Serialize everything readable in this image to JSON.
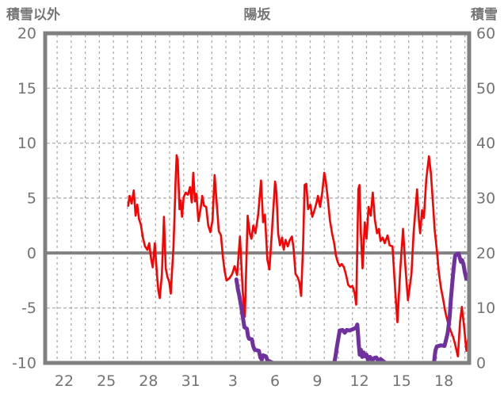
{
  "title": "陽坂",
  "left_axis_title": "積雪以外",
  "right_axis_title": "積雪",
  "colors": {
    "temperature_line": "#fe0000",
    "snow_line": "#7030a0",
    "grid": "#a6a6a6",
    "frame": "#808080",
    "zero_line": "#808080",
    "text": "#737373",
    "background": "#ffffff"
  },
  "chart_data": {
    "type": "line",
    "title": "陽坂",
    "legend": "none",
    "x_axis": {
      "range": [
        21.15,
        51.3
      ],
      "gridline_days": [
        22,
        23,
        24,
        25,
        26,
        27,
        28,
        29,
        30,
        31,
        32,
        33,
        34,
        35,
        36,
        37,
        38,
        39,
        40,
        41,
        42,
        43,
        44,
        45,
        46,
        47,
        48,
        49,
        50,
        51
      ],
      "tick_labels": [
        {
          "t": 22.5,
          "label": "22"
        },
        {
          "t": 25.5,
          "label": "25"
        },
        {
          "t": 28.5,
          "label": "28"
        },
        {
          "t": 31.5,
          "label": "31"
        },
        {
          "t": 34.5,
          "label": "3"
        },
        {
          "t": 37.5,
          "label": "6"
        },
        {
          "t": 40.5,
          "label": "9"
        },
        {
          "t": 43.5,
          "label": "12"
        },
        {
          "t": 46.5,
          "label": "15"
        },
        {
          "t": 49.5,
          "label": "18"
        }
      ]
    },
    "y_left": {
      "label": "積雪以外",
      "range": [
        -10,
        20
      ],
      "ticks": [
        20,
        15,
        10,
        5,
        0,
        -5,
        -10
      ],
      "dashed_gridlines": [
        15,
        10,
        5,
        -5
      ],
      "zero_line": 0
    },
    "y_right": {
      "label": "積雪",
      "range": [
        0,
        60
      ],
      "ticks": [
        60,
        50,
        40,
        30,
        20,
        10,
        0
      ]
    },
    "series": [
      {
        "name": "積雪以外",
        "axis": "left",
        "color": "#fe0000",
        "width": 2.6,
        "segments": [
          [
            [
              27.05,
              4.3
            ],
            [
              27.15,
              5.2
            ],
            [
              27.3,
              4.5
            ],
            [
              27.45,
              5.7
            ],
            [
              27.58,
              3.4
            ],
            [
              27.7,
              4.4
            ],
            [
              27.82,
              3.1
            ],
            [
              27.95,
              2.6
            ],
            [
              28.1,
              1.4
            ],
            [
              28.25,
              0.6
            ],
            [
              28.42,
              0.3
            ],
            [
              28.55,
              0.9
            ],
            [
              28.68,
              -0.5
            ],
            [
              28.8,
              -1.3
            ],
            [
              28.95,
              0.9
            ],
            [
              29.1,
              -2.0
            ],
            [
              29.2,
              -3.4
            ],
            [
              29.3,
              -4.1
            ],
            [
              29.45,
              -1.9
            ],
            [
              29.6,
              3.3
            ],
            [
              29.72,
              -1.4
            ],
            [
              29.85,
              -2.2
            ],
            [
              29.97,
              -2.6
            ],
            [
              30.08,
              -3.7
            ],
            [
              30.18,
              -1.5
            ],
            [
              30.27,
              0.4
            ],
            [
              30.35,
              3.5
            ],
            [
              30.42,
              6.4
            ],
            [
              30.5,
              8.9
            ],
            [
              30.58,
              8.4
            ],
            [
              30.7,
              4.0
            ],
            [
              30.78,
              4.8
            ],
            [
              30.88,
              3.3
            ],
            [
              31.0,
              5.1
            ],
            [
              31.15,
              5.5
            ],
            [
              31.3,
              5.3
            ],
            [
              31.45,
              6.0
            ],
            [
              31.57,
              4.6
            ],
            [
              31.68,
              7.3
            ],
            [
              31.8,
              4.7
            ],
            [
              31.9,
              5.4
            ],
            [
              32.05,
              2.9
            ],
            [
              32.2,
              4.0
            ],
            [
              32.32,
              5.2
            ],
            [
              32.45,
              4.3
            ],
            [
              32.6,
              4.2
            ],
            [
              32.75,
              2.5
            ],
            [
              32.9,
              1.9
            ],
            [
              33.05,
              3.0
            ],
            [
              33.2,
              7.1
            ],
            [
              33.35,
              4.5
            ],
            [
              33.5,
              2.0
            ],
            [
              33.65,
              1.6
            ],
            [
              33.8,
              -0.5
            ],
            [
              33.92,
              -1.7
            ],
            [
              34.05,
              -2.5
            ],
            [
              34.25,
              -2.3
            ],
            [
              34.45,
              -1.9
            ],
            [
              34.62,
              -1.2
            ],
            [
              34.8,
              -2.0
            ],
            [
              35.0,
              1.5
            ],
            [
              35.2,
              -3.5
            ],
            [
              35.35,
              -5.8
            ],
            [
              35.55,
              3.4
            ],
            [
              35.7,
              1.8
            ],
            [
              35.82,
              1.3
            ],
            [
              35.95,
              2.5
            ],
            [
              36.1,
              1.8
            ],
            [
              36.3,
              3.5
            ],
            [
              36.5,
              6.6
            ],
            [
              36.65,
              2.8
            ],
            [
              36.78,
              3.5
            ],
            [
              36.95,
              -0.6
            ],
            [
              37.1,
              -1.5
            ],
            [
              37.3,
              2.5
            ],
            [
              37.5,
              6.5
            ],
            [
              37.6,
              5.5
            ],
            [
              37.72,
              1.8
            ],
            [
              37.85,
              0.7
            ],
            [
              38.0,
              1.4
            ],
            [
              38.12,
              0.3
            ],
            [
              38.25,
              1.2
            ],
            [
              38.4,
              0.6
            ],
            [
              38.55,
              1.2
            ],
            [
              38.7,
              1.5
            ],
            [
              38.82,
              0.4
            ],
            [
              38.95,
              -1.9
            ],
            [
              39.1,
              -2.2
            ],
            [
              39.22,
              -2.6
            ],
            [
              39.35,
              -3.9
            ],
            [
              39.5,
              1.0
            ],
            [
              39.6,
              6.2
            ],
            [
              39.72,
              6.3
            ],
            [
              39.85,
              4.0
            ],
            [
              40.0,
              4.4
            ],
            [
              40.15,
              3.3
            ],
            [
              40.3,
              3.9
            ],
            [
              40.45,
              4.6
            ],
            [
              40.55,
              5.2
            ],
            [
              40.7,
              4.2
            ],
            [
              40.85,
              5.5
            ],
            [
              41.0,
              7.3
            ],
            [
              41.1,
              6.6
            ],
            [
              41.25,
              4.9
            ],
            [
              41.4,
              3.0
            ],
            [
              41.55,
              1.8
            ],
            [
              41.7,
              0.9
            ],
            [
              41.82,
              -0.2
            ],
            [
              41.95,
              -0.8
            ],
            [
              42.1,
              -1.2
            ],
            [
              42.25,
              -1.0
            ],
            [
              42.4,
              -1.3
            ],
            [
              42.55,
              -2.0
            ],
            [
              42.7,
              -2.9
            ],
            [
              42.85,
              -3.1
            ],
            [
              43.0,
              -3.0
            ],
            [
              43.15,
              -3.6
            ],
            [
              43.27,
              -4.7
            ],
            [
              43.42,
              5.8
            ],
            [
              43.5,
              6.2
            ],
            [
              43.6,
              1.8
            ],
            [
              43.72,
              -1.4
            ],
            [
              43.88,
              2.8
            ],
            [
              44.0,
              1.3
            ],
            [
              44.15,
              4.2
            ],
            [
              44.3,
              3.4
            ],
            [
              44.45,
              5.5
            ],
            [
              44.6,
              3.0
            ],
            [
              44.75,
              1.8
            ],
            [
              44.88,
              2.2
            ],
            [
              45.0,
              1.1
            ],
            [
              45.15,
              1.4
            ],
            [
              45.3,
              0.9
            ],
            [
              45.5,
              1.6
            ],
            [
              45.65,
              0.7
            ],
            [
              45.85,
              0.6
            ],
            [
              46.05,
              -3.5
            ],
            [
              46.2,
              -6.3
            ],
            [
              46.4,
              -1.5
            ],
            [
              46.6,
              2.2
            ],
            [
              46.75,
              -1.0
            ],
            [
              46.95,
              -4.3
            ],
            [
              47.2,
              -1.9
            ],
            [
              47.35,
              1.8
            ],
            [
              47.6,
              5.8
            ],
            [
              47.72,
              3.1
            ],
            [
              47.82,
              1.8
            ],
            [
              47.95,
              3.9
            ],
            [
              48.08,
              3.2
            ],
            [
              48.25,
              6.7
            ],
            [
              48.44,
              8.8
            ],
            [
              48.58,
              7.3
            ],
            [
              48.7,
              5.0
            ],
            [
              48.85,
              2.1
            ],
            [
              49.0,
              0.3
            ],
            [
              49.15,
              -1.8
            ],
            [
              49.3,
              -3.2
            ],
            [
              49.45,
              -4.2
            ],
            [
              49.6,
              -5.3
            ],
            [
              49.8,
              -6.4
            ],
            [
              50.0,
              -7.1
            ],
            [
              50.15,
              -7.6
            ],
            [
              50.3,
              -8.3
            ],
            [
              50.5,
              -9.4
            ],
            [
              50.65,
              -6.3
            ],
            [
              50.78,
              -4.9
            ],
            [
              50.95,
              -6.8
            ],
            [
              51.1,
              -8.9
            ],
            [
              51.25,
              -7.6
            ]
          ]
        ]
      },
      {
        "name": "積雪",
        "axis": "right",
        "color": "#7030a0",
        "width": 5,
        "segments": [
          [
            [
              27.1,
              0
            ],
            [
              34.45,
              0
            ]
          ],
          [
            [
              34.75,
              15.2
            ],
            [
              34.85,
              13.5
            ],
            [
              34.95,
              12.3
            ],
            [
              35.05,
              10.8
            ],
            [
              35.15,
              9.3
            ],
            [
              35.25,
              7.6
            ],
            [
              35.32,
              6.5
            ],
            [
              35.5,
              6.2
            ],
            [
              35.58,
              4.8
            ],
            [
              35.65,
              4.4
            ],
            [
              35.85,
              4.3
            ],
            [
              35.95,
              3.0
            ],
            [
              36.05,
              2.4
            ],
            [
              36.35,
              2.2
            ],
            [
              36.45,
              1.0
            ],
            [
              36.55,
              0.6
            ],
            [
              36.65,
              1.4
            ],
            [
              36.85,
              1.2
            ],
            [
              36.95,
              0.5
            ],
            [
              37.1,
              0.3
            ],
            [
              37.35,
              0
            ],
            [
              41.7,
              0
            ],
            [
              41.8,
              1.2
            ],
            [
              41.9,
              3.0
            ],
            [
              42.0,
              4.5
            ],
            [
              42.1,
              5.9
            ],
            [
              42.3,
              6.0
            ],
            [
              42.45,
              5.5
            ],
            [
              42.6,
              6.0
            ],
            [
              42.8,
              5.9
            ],
            [
              43.0,
              6.1
            ],
            [
              43.25,
              6.4
            ],
            [
              43.35,
              7.0
            ],
            [
              43.45,
              3.4
            ],
            [
              43.52,
              1.5
            ],
            [
              43.6,
              2.4
            ],
            [
              43.7,
              1.1
            ],
            [
              43.8,
              1.9
            ],
            [
              43.9,
              1.2
            ],
            [
              44.0,
              1.5
            ],
            [
              44.1,
              0.6
            ],
            [
              44.25,
              1.1
            ],
            [
              44.4,
              0.4
            ],
            [
              44.55,
              0.9
            ],
            [
              44.7,
              1.0
            ],
            [
              44.85,
              0.3
            ],
            [
              45.0,
              0.7
            ],
            [
              45.15,
              0.4
            ],
            [
              45.35,
              0
            ],
            [
              48.8,
              0
            ],
            [
              48.9,
              2.2
            ],
            [
              49.0,
              3.0
            ],
            [
              49.3,
              3.2
            ],
            [
              49.55,
              3.1
            ],
            [
              49.65,
              4.1
            ],
            [
              49.78,
              5.5
            ],
            [
              49.85,
              7.0
            ],
            [
              49.92,
              8.5
            ],
            [
              50.0,
              11.5
            ],
            [
              50.1,
              14.5
            ],
            [
              50.2,
              17.3
            ],
            [
              50.3,
              19.5
            ],
            [
              50.42,
              19.8
            ],
            [
              50.55,
              19.9
            ],
            [
              50.62,
              19.3
            ],
            [
              50.72,
              18.4
            ],
            [
              50.8,
              18.7
            ],
            [
              50.9,
              17.9
            ],
            [
              51.0,
              16.4
            ],
            [
              51.1,
              15.3
            ],
            [
              51.25,
              16.2
            ]
          ]
        ]
      }
    ]
  }
}
